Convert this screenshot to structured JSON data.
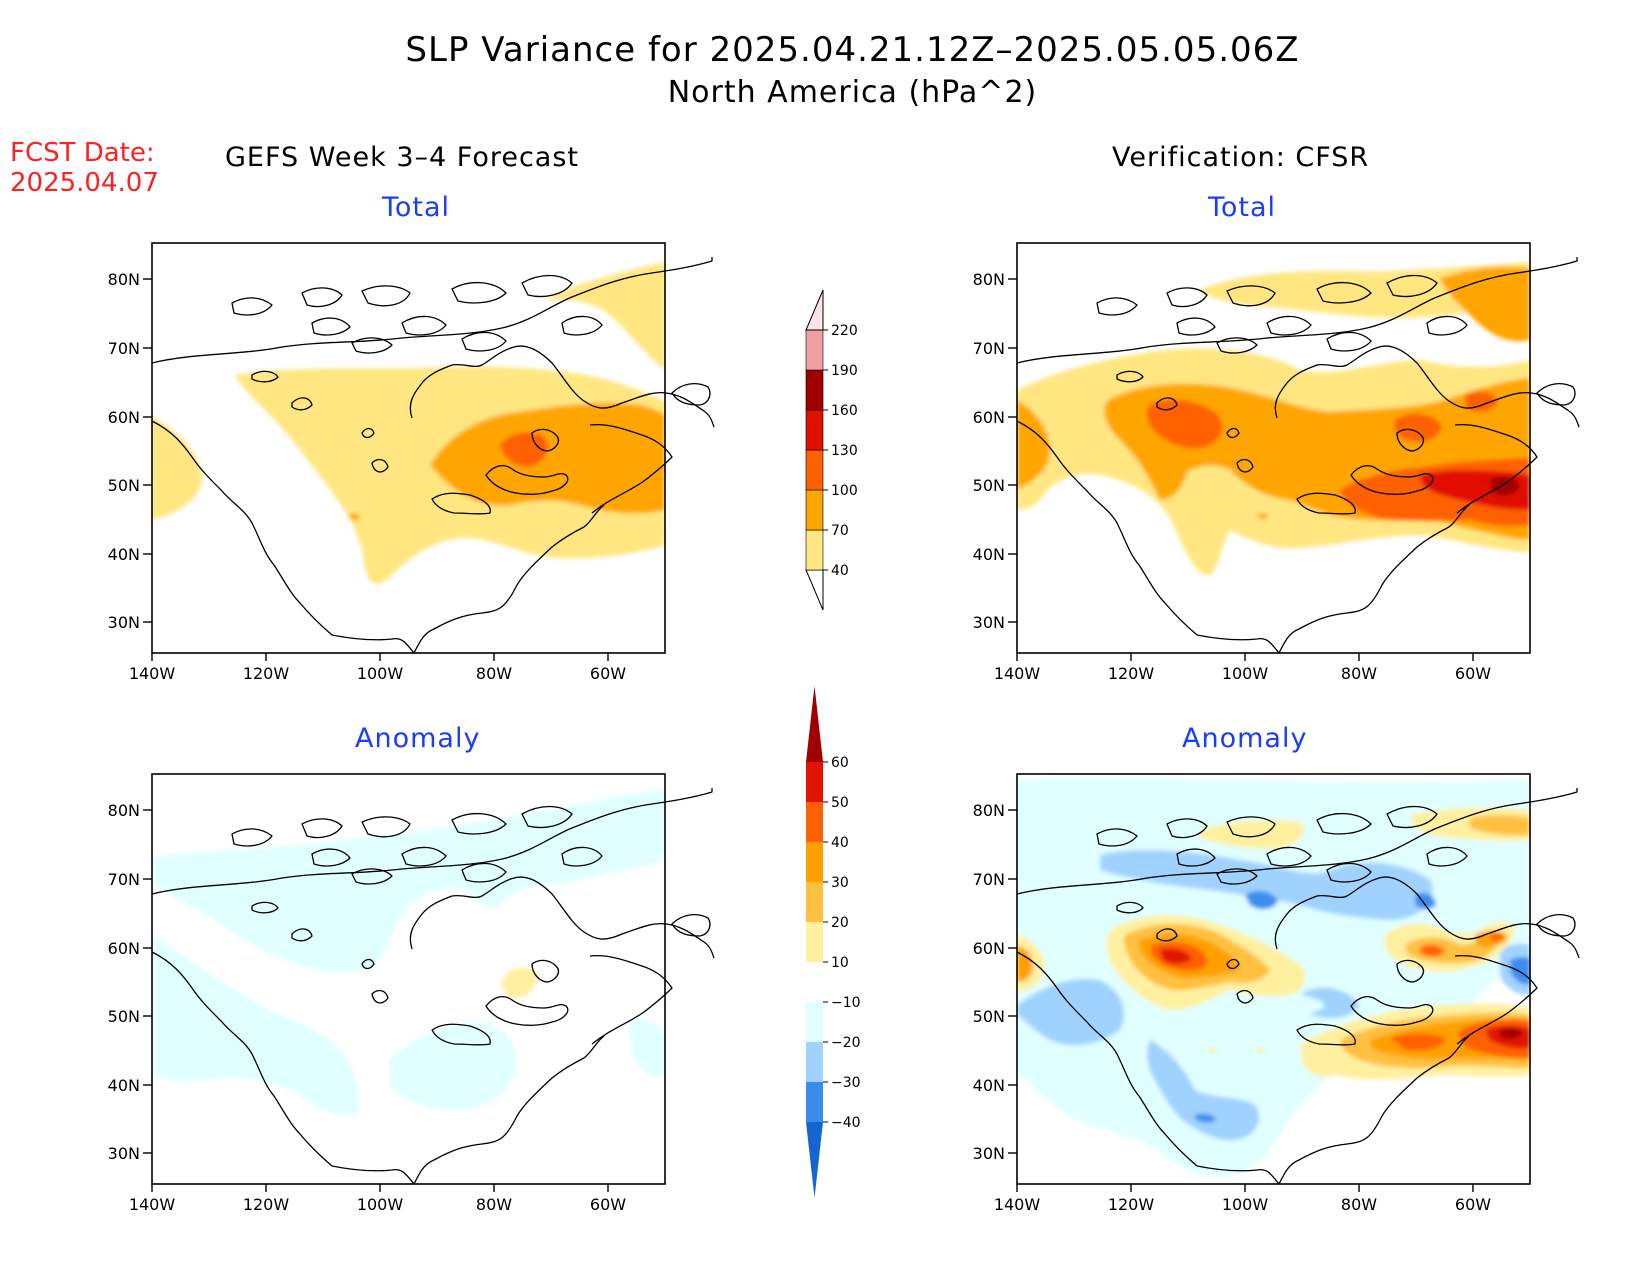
{
  "title": {
    "line1": "SLP Variance for 2025.04.21.12Z–2025.05.05.06Z",
    "line2": "North America (hPa^2)"
  },
  "fcst": {
    "label": "FCST Date:",
    "date": "2025.04.07"
  },
  "columns": {
    "left": "GEFS Week 3–4 Forecast",
    "right": "Verification: CFSR"
  },
  "rows": {
    "top": "Total",
    "bottom": "Anomaly"
  },
  "axes": {
    "lat_labels": [
      "80N",
      "70N",
      "60N",
      "50N",
      "40N",
      "30N"
    ],
    "lon_labels": [
      "140W",
      "120W",
      "100W",
      "80W",
      "60W"
    ]
  },
  "colorbars": {
    "total": {
      "levels": [
        "40",
        "70",
        "100",
        "130",
        "160",
        "190",
        "220"
      ],
      "colors": [
        "#ffe680",
        "#ffa500",
        "#ff6000",
        "#e01000",
        "#a00000",
        "#f0a0a0",
        "#ffe4e4"
      ]
    },
    "anomaly": {
      "levels": [
        "−40",
        "−30",
        "−20",
        "−10",
        "10",
        "20",
        "30",
        "40",
        "50",
        "60"
      ],
      "colors": [
        "#1464d2",
        "#3c8cf0",
        "#a0d2ff",
        "#e0ffff",
        "#ffffff",
        "#fff0a0",
        "#ffc040",
        "#ffa000",
        "#ff6000",
        "#e01400",
        "#a00000"
      ]
    }
  }
}
